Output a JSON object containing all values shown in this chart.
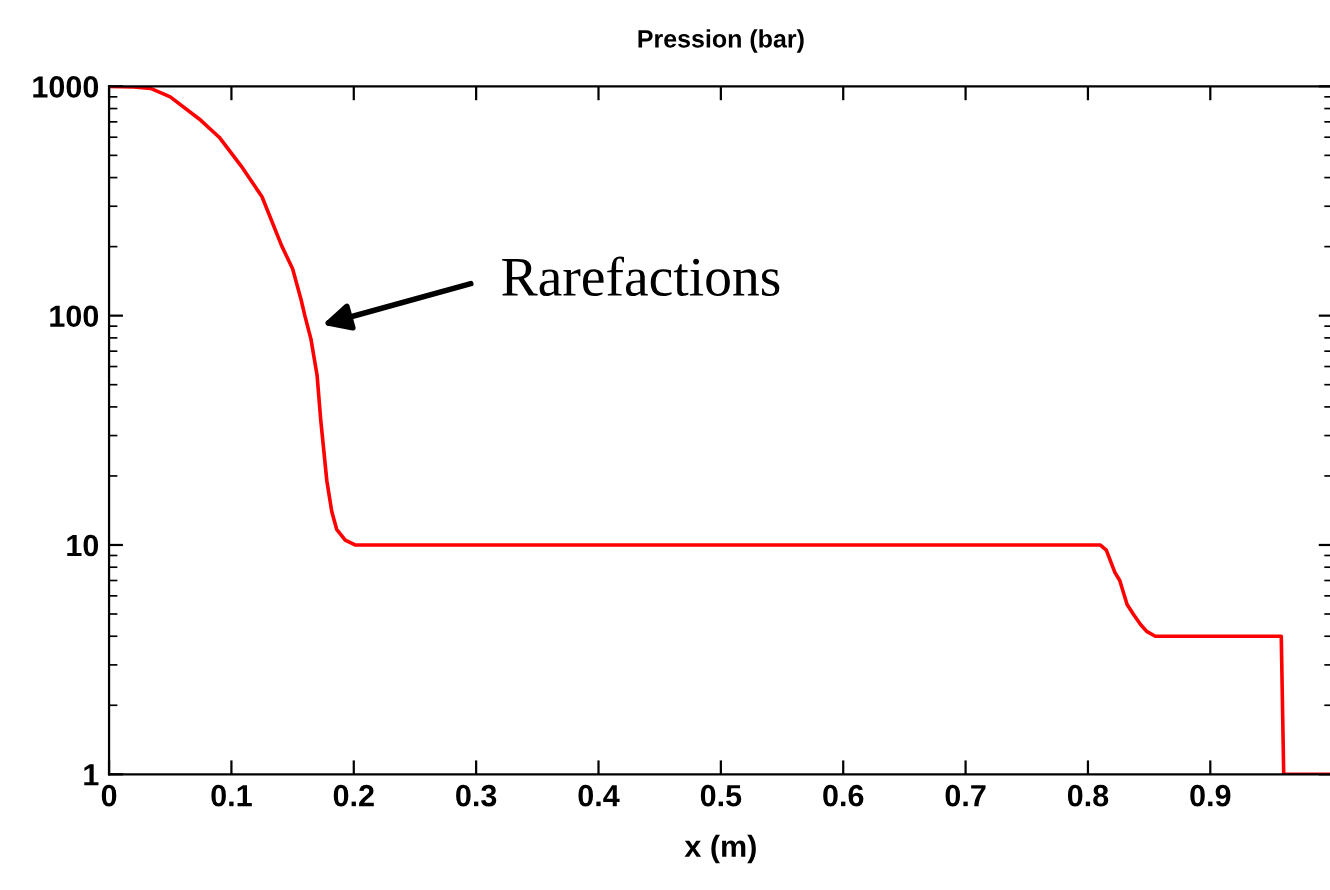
{
  "chart_data": {
    "type": "line",
    "title": "Pression (bar)",
    "xlabel": "x (m)",
    "x": [
      0,
      0.02,
      0.034,
      0.05,
      0.075,
      0.09,
      0.108,
      0.125,
      0.141,
      0.15,
      0.157,
      0.16,
      0.165,
      0.17,
      0.173,
      0.178,
      0.182,
      0.186,
      0.193,
      0.201,
      0.3,
      0.5,
      0.7,
      0.81,
      0.815,
      0.822,
      0.826,
      0.832,
      0.837,
      0.843,
      0.848,
      0.855,
      0.9,
      0.958,
      0.96,
      1
    ],
    "series": [
      {
        "color": "#ff0000",
        "values": [
          1000,
          995,
          980,
          900,
          711,
          600,
          449,
          330,
          202,
          160,
          117,
          100,
          79,
          55,
          35,
          19,
          14,
          11.7,
          10.5,
          10,
          10,
          10,
          10,
          10,
          9.5,
          7.6,
          7,
          5.5,
          5,
          4.5,
          4.2,
          4,
          4,
          4,
          1,
          1
        ]
      }
    ],
    "log": "y",
    "xlim": [
      0,
      1
    ],
    "ylim": [
      1,
      1000
    ],
    "xticks": [
      0,
      0.1,
      0.2,
      0.3,
      0.4,
      0.5,
      0.6,
      0.7,
      0.8,
      0.9,
      {
        "value": 1,
        "label": null
      }
    ],
    "yticks": [
      1,
      10,
      100,
      1000
    ],
    "annotations": [
      "Rarefactions"
    ],
    "grid": false,
    "marker": "none",
    "line_style": "solid"
  }
}
